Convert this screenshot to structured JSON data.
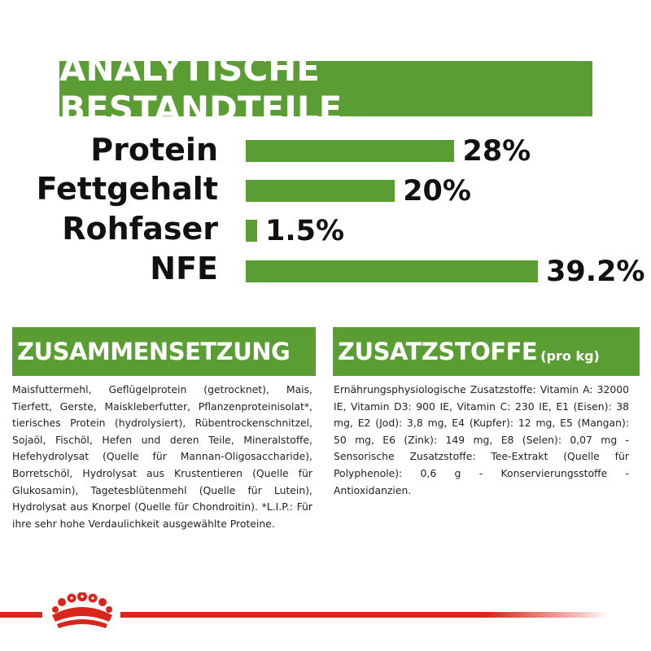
{
  "title": "ANALYTISCHE BESTANDTEILE",
  "colors": {
    "accent_green": "#5a9e33",
    "brand_red": "#d9261c"
  },
  "nutrients": [
    {
      "label": "Protein",
      "value_text": "28%",
      "value": 28
    },
    {
      "label": "Fettgehalt",
      "value_text": "20%",
      "value": 20
    },
    {
      "label": "Rohfaser",
      "value_text": "1.5%",
      "value": 1.5
    },
    {
      "label": "NFE",
      "value_text": "39.2%",
      "value": 39.2
    }
  ],
  "composition": {
    "heading": "ZUSAMMENSETZUNG",
    "text": "Maisfuttermehl, Geflügelprotein (getrocknet), Mais, Tierfett, Gerste, Maiskleberfutter, Pflanzenproteinisolat*, tierisches Protein (hydrolysiert), Rübentrockenschnitzel, Sojaöl, Fischöl, Hefen und deren Teile, Mineralstoffe, Hefehydrolysat (Quelle für Mannan-Oligosaccharide), Borretschöl, Hydrolysat aus Krustentieren (Quelle für Glukosamin), Tagetesblütenmehl (Quelle für Lutein), Hydrolysat aus Knorpel (Quelle für Chondroitin). *L.I.P.: Für ihre sehr hohe Verdaulichkeit ausgewählte Proteine."
  },
  "additives": {
    "heading": "ZUSATZSTOFFE",
    "heading_suffix": "(pro kg)",
    "text": "Ernährungsphysiologische Zusatzstoffe: Vitamin A: 32000 IE, Vitamin D3: 900 IE, Vitamin C: 230 IE, E1 (Eisen): 38 mg, E2 (Jod): 3,8 mg, E4 (Kupfer): 12 mg, E5 (Mangan): 50 mg, E6 (Zink): 149 mg, E8 (Selen): 0,07 mg - Sensorische Zusatzstoffe: Tee-Extrakt (Quelle für Polyphenole): 0,6 g - Konservierungsstoffe - Antioxidanzien."
  },
  "logo": {
    "icon": "royal-canin-crown-icon"
  }
}
